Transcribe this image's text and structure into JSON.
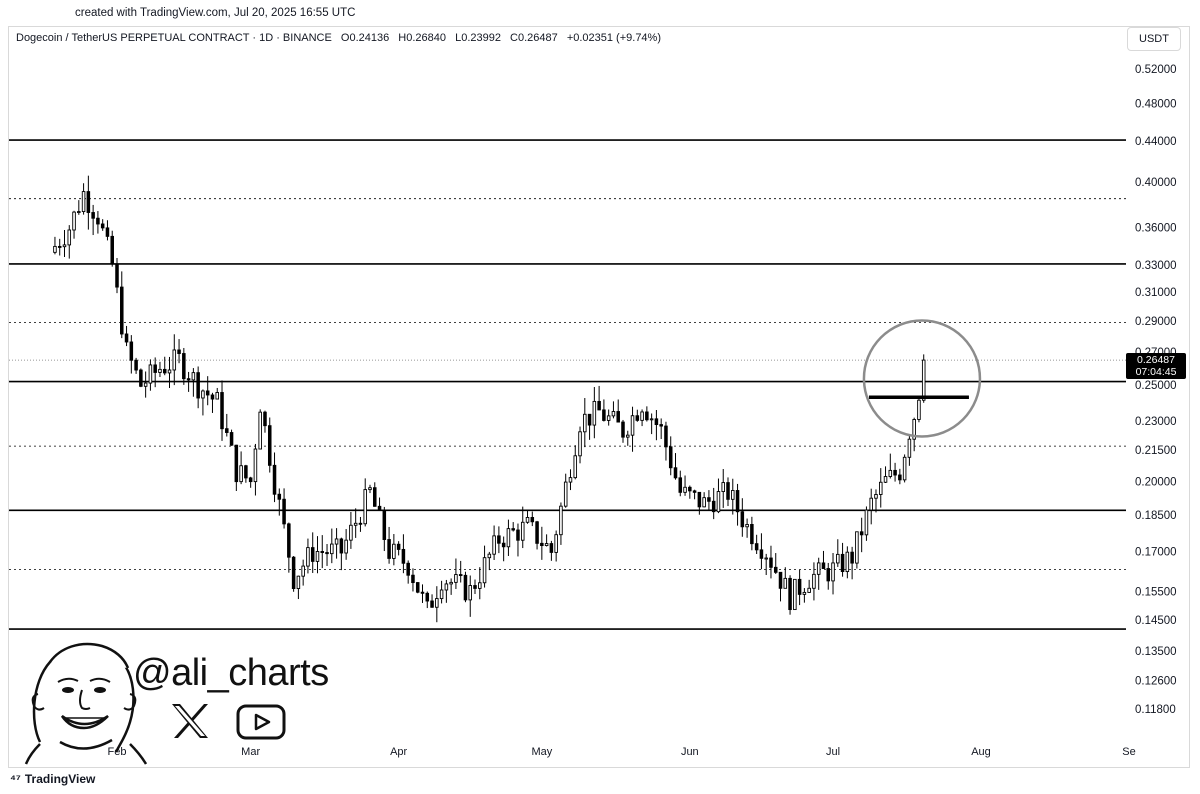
{
  "header": {
    "created_text": "created with TradingView.com, Jul 20, 2025 16:55 UTC"
  },
  "legend": {
    "symbol": "Dogecoin / TetherUS PERPETUAL CONTRACT · 1D · BINANCE",
    "open": "O0.24136",
    "high": "H0.26840",
    "low": "L0.23992",
    "close": "C0.26487",
    "change": "+0.02351 (+9.74%)"
  },
  "unit_label": "USDT",
  "last_price": {
    "price": "0.26487",
    "countdown": "07:04:45"
  },
  "watermark": {
    "handle": "@ali_charts",
    "icons": [
      "x-logo-icon",
      "youtube-icon",
      "avatar-illustration"
    ]
  },
  "footer": {
    "brand": "TradingView"
  },
  "chart_data": {
    "type": "candlestick",
    "title": "",
    "xlabel": "",
    "ylabel": "",
    "y_scale": "log",
    "ylim": [
      0.113,
      0.55
    ],
    "x_range": [
      "2025-01-18",
      "2025-09-01"
    ],
    "yticks": [
      "0.52000",
      "0.48000",
      "0.44000",
      "0.40000",
      "0.36000",
      "0.33000",
      "0.31000",
      "0.29000",
      "0.27000",
      "0.25000",
      "0.23000",
      "0.21500",
      "0.20000",
      "0.18500",
      "0.17000",
      "0.15500",
      "0.14500",
      "0.13500",
      "0.12600",
      "0.11800"
    ],
    "ytick_values": [
      0.52,
      0.48,
      0.44,
      0.4,
      0.36,
      0.33,
      0.31,
      0.29,
      0.27,
      0.25,
      0.23,
      0.215,
      0.2,
      0.185,
      0.17,
      0.155,
      0.145,
      0.135,
      0.126,
      0.118
    ],
    "months": [
      {
        "label": "Feb",
        "date": "2025-02-01"
      },
      {
        "label": "Mar",
        "date": "2025-03-01"
      },
      {
        "label": "Apr",
        "date": "2025-04-01"
      },
      {
        "label": "May",
        "date": "2025-05-01"
      },
      {
        "label": "Jun",
        "date": "2025-06-01"
      },
      {
        "label": "Jul",
        "date": "2025-07-01"
      },
      {
        "label": "Aug",
        "date": "2025-08-01"
      },
      {
        "label": "Se",
        "date": "2025-09-01"
      }
    ],
    "horizontal_levels": [
      {
        "price": 0.441,
        "style": "solid"
      },
      {
        "price": 0.385,
        "style": "dotted"
      },
      {
        "price": 0.331,
        "style": "solid"
      },
      {
        "price": 0.289,
        "style": "dotted"
      },
      {
        "price": 0.252,
        "style": "solid"
      },
      {
        "price": 0.217,
        "style": "dotted"
      },
      {
        "price": 0.187,
        "style": "solid"
      },
      {
        "price": 0.163,
        "style": "dotted"
      },
      {
        "price": 0.142,
        "style": "solid"
      }
    ],
    "current_price_line": 0.26487,
    "annotation": {
      "type": "circle",
      "center_date": "2025-07-19",
      "center_price": 0.255,
      "highlight_level": 0.243
    },
    "anchors": [
      {
        "date": "2025-01-18",
        "close": 0.34
      },
      {
        "date": "2025-01-22",
        "close": 0.36
      },
      {
        "date": "2025-01-25",
        "close": 0.39
      },
      {
        "date": "2025-01-28",
        "close": 0.37
      },
      {
        "date": "2025-01-31",
        "close": 0.33
      },
      {
        "date": "2025-02-03",
        "close": 0.27
      },
      {
        "date": "2025-02-06",
        "close": 0.25
      },
      {
        "date": "2025-02-10",
        "close": 0.26
      },
      {
        "date": "2025-02-14",
        "close": 0.265
      },
      {
        "date": "2025-02-18",
        "close": 0.25
      },
      {
        "date": "2025-02-22",
        "close": 0.24
      },
      {
        "date": "2025-02-26",
        "close": 0.205
      },
      {
        "date": "2025-03-01",
        "close": 0.2
      },
      {
        "date": "2025-03-03",
        "close": 0.24
      },
      {
        "date": "2025-03-06",
        "close": 0.2
      },
      {
        "date": "2025-03-10",
        "close": 0.16
      },
      {
        "date": "2025-03-14",
        "close": 0.17
      },
      {
        "date": "2025-03-20",
        "close": 0.17
      },
      {
        "date": "2025-03-26",
        "close": 0.195
      },
      {
        "date": "2025-03-30",
        "close": 0.17
      },
      {
        "date": "2025-04-03",
        "close": 0.165
      },
      {
        "date": "2025-04-07",
        "close": 0.148
      },
      {
        "date": "2025-04-10",
        "close": 0.16
      },
      {
        "date": "2025-04-16",
        "close": 0.155
      },
      {
        "date": "2025-04-22",
        "close": 0.175
      },
      {
        "date": "2025-04-28",
        "close": 0.18
      },
      {
        "date": "2025-05-03",
        "close": 0.17
      },
      {
        "date": "2025-05-09",
        "close": 0.23
      },
      {
        "date": "2025-05-13",
        "close": 0.235
      },
      {
        "date": "2025-05-18",
        "close": 0.225
      },
      {
        "date": "2025-05-22",
        "close": 0.24
      },
      {
        "date": "2025-05-26",
        "close": 0.225
      },
      {
        "date": "2025-05-30",
        "close": 0.195
      },
      {
        "date": "2025-06-04",
        "close": 0.19
      },
      {
        "date": "2025-06-09",
        "close": 0.195
      },
      {
        "date": "2025-06-13",
        "close": 0.18
      },
      {
        "date": "2025-06-17",
        "close": 0.17
      },
      {
        "date": "2025-06-22",
        "close": 0.153
      },
      {
        "date": "2025-06-26",
        "close": 0.16
      },
      {
        "date": "2025-07-01",
        "close": 0.163
      },
      {
        "date": "2025-07-05",
        "close": 0.168
      },
      {
        "date": "2025-07-09",
        "close": 0.19
      },
      {
        "date": "2025-07-12",
        "close": 0.2
      },
      {
        "date": "2025-07-15",
        "close": 0.205
      },
      {
        "date": "2025-07-17",
        "close": 0.225
      },
      {
        "date": "2025-07-19",
        "close": 0.2414
      },
      {
        "date": "2025-07-20",
        "close": 0.26487
      }
    ]
  }
}
